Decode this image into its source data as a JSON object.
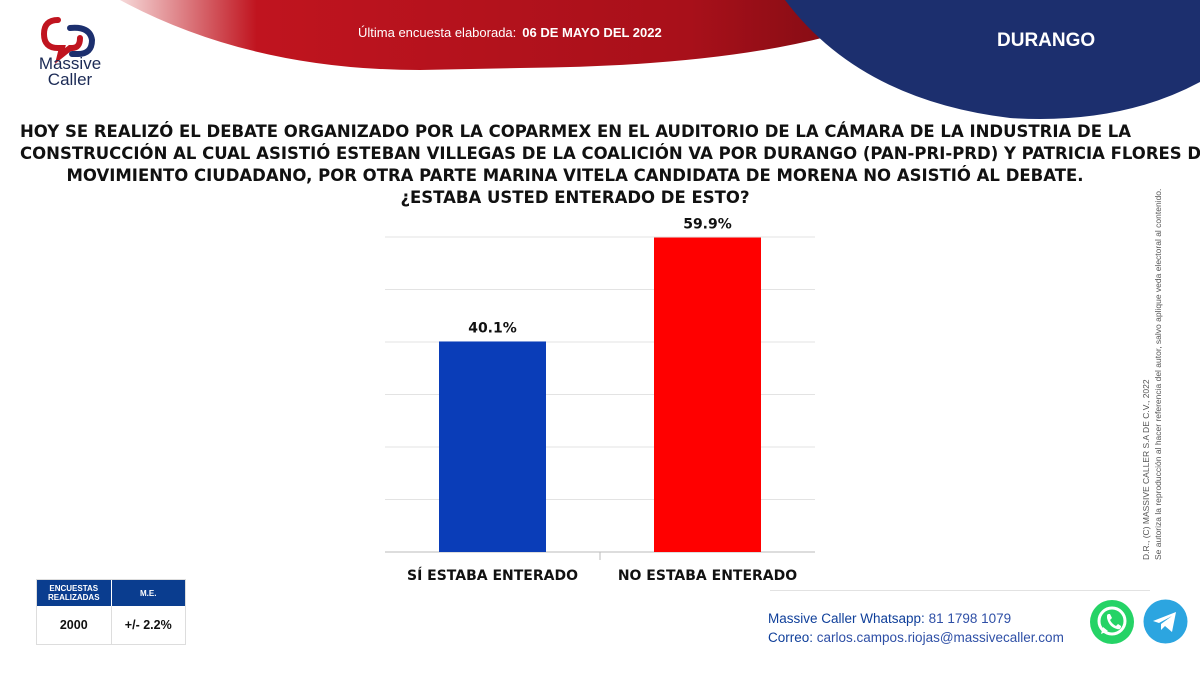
{
  "brand": {
    "name_line1": "Massive",
    "name_line2": "Caller"
  },
  "header": {
    "label": "Última encuesta elaborada:",
    "date": "06 DE MAYO DEL 2022",
    "state": "DURANGO"
  },
  "question": {
    "lines": [
      "HOY SE REALIZÓ EL DEBATE ORGANIZADO POR LA COPARMEX EN EL AUDITORIO DE LA CÁMARA DE LA INDUSTRIA DE LA",
      "CONSTRUCCIÓN AL CUAL ASISTIÓ ESTEBAN VILLEGAS DE LA COALICIÓN VA POR DURANGO (PAN-PRI-PRD)  Y PATRICIA FLORES DE",
      "MOVIMIENTO CIUDADANO, POR OTRA PARTE MARINA VITELA CANDIDATA DE MORENA NO ASISTIÓ AL DEBATE.",
      "¿ESTABA USTED ENTERADO DE ESTO?"
    ]
  },
  "chart_data": {
    "type": "bar",
    "categories": [
      "SÍ ESTABA ENTERADO",
      "NO ESTABA ENTERADO"
    ],
    "values": [
      40.1,
      59.9
    ],
    "data_labels": [
      "40.1%",
      "59.9%"
    ],
    "colors": [
      "#0a3db8",
      "#ff0000"
    ],
    "ylim": [
      0,
      60
    ],
    "grid": true,
    "title": "",
    "xlabel": "",
    "ylabel": ""
  },
  "stats": {
    "col1_header": "ENCUESTAS REALIZADAS",
    "col2_header": "M.E.",
    "col1_value": "2000",
    "col2_value": "+/- 2.2%"
  },
  "contact": {
    "whatsapp_label": "Massive Caller Whatsapp:",
    "whatsapp_number": "81 1798 1079",
    "email_label": "Correo:",
    "email": "carlos.campos.riojas@massivecaller.com"
  },
  "side_note": {
    "line1": "D.R., (C) MASSIVE CALLER S.A DE C.V., 2022",
    "line2": "Se autoriza la reproducción al hacer referencia del autor, salvo aplique veda electoral al contenido."
  },
  "icons": [
    "logo-icon",
    "whatsapp-icon",
    "telegram-icon"
  ],
  "theme": {
    "red": "#c0141f",
    "navy": "#1c2f6e",
    "blue": "#0a3d8f"
  }
}
